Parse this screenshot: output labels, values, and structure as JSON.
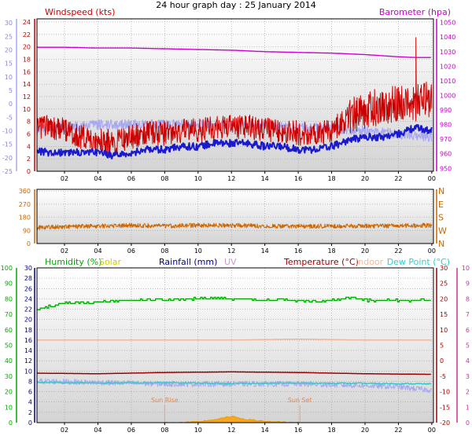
{
  "page": {
    "title": "24 hour graph day : 25 January 2014"
  },
  "colors": {
    "windspeed": "#cc0000",
    "barometer": "#cc00cc",
    "wind_avg": "#1a1acc",
    "wind_light": "#a8a8f0",
    "direction": "#cc6600",
    "humidity": "#00aa00",
    "solar": "#cccc00",
    "rainfall": "#000080",
    "uv": "#cc99cc",
    "temperature": "#990000",
    "indoor": "#f0b898",
    "dewpoint": "#33cccc",
    "frame": "#000000",
    "grid": "#999999"
  },
  "chart_data": [
    {
      "type": "line",
      "title": "24 hour graph day : 25 January 2014",
      "x_ticks": [
        "02",
        "04",
        "06",
        "08",
        "10",
        "12",
        "14",
        "16",
        "18",
        "20",
        "22",
        "00"
      ],
      "y_left_outer": {
        "label": "",
        "ticks": [
          "-25",
          "-20",
          "-15",
          "-10",
          "-5",
          "0",
          "5",
          "10",
          "15",
          "20",
          "25",
          "30"
        ],
        "range": [
          -25,
          30
        ]
      },
      "y_left": {
        "label": "Windspeed (kts)",
        "ticks": [
          "0",
          "2",
          "4",
          "6",
          "8",
          "10",
          "12",
          "14",
          "16",
          "18",
          "20",
          "22",
          "24"
        ],
        "range": [
          0,
          25
        ]
      },
      "y_right": {
        "label": "Barometer (hpa)",
        "ticks": [
          "950",
          "960",
          "970",
          "980",
          "990",
          "1000",
          "1010",
          "1020",
          "1030",
          "1040",
          "1050"
        ],
        "range": [
          948,
          1052
        ]
      },
      "grid": true,
      "series": [
        {
          "name": "Windspeed (kts)",
          "x_hours": [
            0,
            1,
            2,
            3,
            4,
            5,
            6,
            7,
            8,
            9,
            10,
            11,
            12,
            13,
            14,
            15,
            16,
            17,
            18,
            19,
            20,
            21,
            22,
            23,
            24
          ],
          "values": [
            6,
            6.5,
            6,
            5,
            4.5,
            4,
            5,
            5.5,
            5.5,
            6,
            6,
            6.5,
            6.5,
            6.5,
            6,
            6,
            5.5,
            5.5,
            6,
            8,
            9,
            9.5,
            10,
            10,
            11
          ],
          "peak": 21.5
        },
        {
          "name": "Barometer (hpa)",
          "x_hours": [
            0,
            2,
            4,
            6,
            8,
            10,
            12,
            14,
            16,
            18,
            20,
            22,
            23,
            24
          ],
          "values": [
            1033,
            1033,
            1032.5,
            1032.5,
            1032,
            1031.5,
            1031,
            1030,
            1029.5,
            1029,
            1028,
            1026.5,
            1026,
            1026
          ]
        },
        {
          "name": "",
          "x_hours": [
            0,
            1,
            2,
            3,
            4,
            5,
            6,
            7,
            8,
            9,
            10,
            11,
            12,
            13,
            14,
            15,
            16,
            17,
            18,
            19,
            20,
            21,
            22,
            23,
            24
          ],
          "values": [
            3.5,
            3,
            3,
            3,
            3,
            2.5,
            3,
            3.5,
            3.5,
            4,
            4,
            4.5,
            4.5,
            4.5,
            4,
            4,
            3.5,
            3.5,
            4,
            5,
            5.5,
            5.5,
            6,
            7,
            6.5
          ]
        },
        {
          "name": "",
          "x_hours": [
            0,
            2,
            4,
            6,
            8,
            10,
            12,
            14,
            16,
            18,
            20,
            22,
            24
          ],
          "values": [
            7,
            7,
            7.5,
            7.5,
            7.5,
            7.5,
            7.5,
            7.5,
            7,
            7,
            6.5,
            6,
            5.5
          ]
        }
      ]
    },
    {
      "type": "line",
      "x_ticks": [
        "02",
        "04",
        "06",
        "08",
        "10",
        "12",
        "14",
        "16",
        "18",
        "20",
        "22",
        "00"
      ],
      "y_left": {
        "label": "",
        "ticks": [
          "0",
          "90",
          "180",
          "270",
          "360"
        ],
        "range": [
          0,
          360
        ]
      },
      "y_right": {
        "label": "",
        "ticks": [
          "N",
          "W",
          "S",
          "E",
          "N"
        ]
      },
      "grid": true,
      "series": [
        {
          "name": "",
          "x_hours": [
            0,
            2,
            4,
            6,
            8,
            10,
            12,
            14,
            16,
            18,
            20,
            22,
            24
          ],
          "values": [
            110,
            115,
            120,
            125,
            120,
            125,
            125,
            120,
            118,
            120,
            120,
            122,
            125
          ]
        }
      ]
    },
    {
      "type": "line",
      "x_ticks": [
        "02",
        "04",
        "06",
        "08",
        "10",
        "12",
        "14",
        "16",
        "18",
        "20",
        "22",
        "00"
      ],
      "legend": [
        "Humidity (%)",
        "Solar",
        "Rainfall (mm)",
        "UV",
        "Temperature (°C)",
        "Indoor",
        "Dew Point (°C)"
      ],
      "y_left_outer": {
        "label": "",
        "ticks": [
          "0",
          "10",
          "20",
          "30",
          "40",
          "50",
          "60",
          "70",
          "80",
          "90",
          "100"
        ],
        "range": [
          0,
          100
        ]
      },
      "y_left": {
        "label": "",
        "ticks": [
          "0",
          "2",
          "4",
          "6",
          "8",
          "10",
          "12",
          "14",
          "16",
          "18",
          "20",
          "22",
          "24",
          "26",
          "28",
          "30"
        ],
        "range": [
          0,
          30
        ]
      },
      "y_right": {
        "label": "",
        "ticks": [
          "-20",
          "-15",
          "-10",
          "-5",
          "0",
          "5",
          "10",
          "15",
          "20",
          "25",
          "30"
        ],
        "range": [
          -20,
          30
        ]
      },
      "y_right_outer": {
        "label": "",
        "ticks": [
          "0",
          "1",
          "2",
          "3",
          "4",
          "5",
          "6",
          "7",
          "8",
          "9",
          "10"
        ],
        "range": [
          0,
          10
        ]
      },
      "annotations": [
        {
          "text": "Sun Rise",
          "x_hour": 8
        },
        {
          "text": "Sun Set",
          "x_hour": 16.1
        }
      ],
      "grid": true,
      "series": [
        {
          "name": "Humidity (%)",
          "x_hours": [
            0,
            1,
            2,
            4,
            6,
            8,
            10,
            11,
            12,
            14,
            15,
            16,
            18,
            19,
            20,
            22,
            24
          ],
          "values": [
            72,
            75,
            77,
            78,
            79,
            79.5,
            80,
            80.5,
            80,
            79,
            80,
            78.5,
            79,
            81,
            79,
            79,
            79
          ]
        },
        {
          "name": "Indoor",
          "x_hours": [
            0,
            4,
            8,
            12,
            16,
            20,
            24
          ],
          "values": [
            16,
            16,
            16,
            16,
            16.2,
            16,
            16
          ]
        },
        {
          "name": "Temperature (°C)",
          "x_hours": [
            0,
            4,
            8,
            12,
            16,
            20,
            24
          ],
          "values": [
            -4,
            -4.2,
            -3.8,
            -3.6,
            -3.8,
            -4.2,
            -4.4
          ]
        },
        {
          "name": "Dew Point (°C)",
          "x_hours": [
            0,
            4,
            8,
            12,
            16,
            20,
            24
          ],
          "values": [
            -7,
            -7.2,
            -7.1,
            -7.3,
            -7.2,
            -7.3,
            -7.5
          ]
        },
        {
          "name": "",
          "x_hours": [
            0,
            4,
            8,
            12,
            16,
            20,
            22,
            24
          ],
          "values": [
            -6.5,
            -7,
            -7.5,
            -7.5,
            -7.5,
            -8,
            -8.5,
            -9.5
          ]
        },
        {
          "name": "Solar",
          "x_hours": [
            8,
            9,
            10,
            11,
            12,
            13,
            14,
            15,
            16
          ],
          "values": [
            0,
            0,
            0.2,
            0.6,
            1.2,
            0.6,
            0.3,
            0.1,
            0
          ]
        }
      ]
    }
  ]
}
